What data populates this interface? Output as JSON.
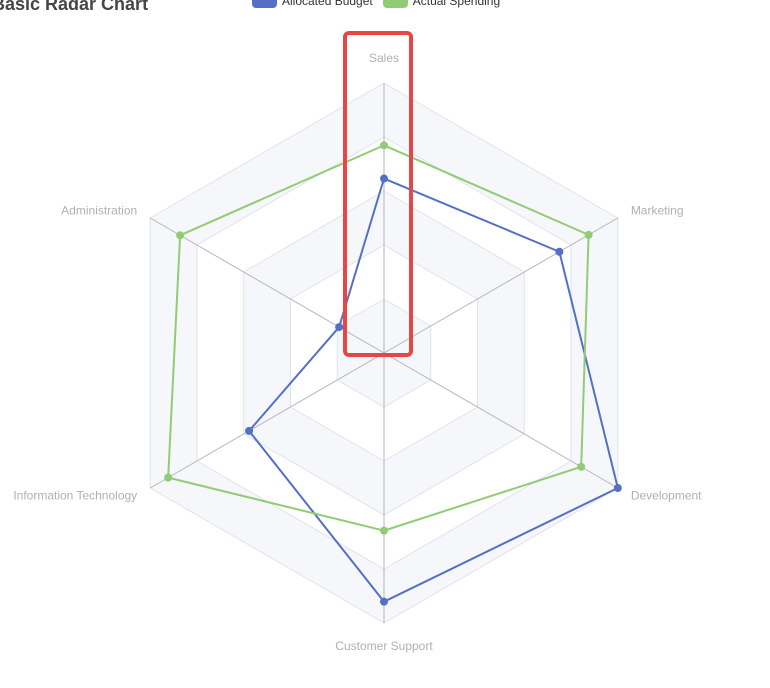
{
  "colors": {
    "allocated": "#5470c6",
    "actual": "#91cc75",
    "highlight": "#e84545"
  },
  "legend": {
    "allocated_label": "Allocated Budget",
    "actual_label": "Actual Spending"
  },
  "chart_data": {
    "type": "radar",
    "title": "Basic Radar Chart",
    "indicators": [
      {
        "name": "Sales",
        "max": 6500
      },
      {
        "name": "Marketing",
        "max": 16000
      },
      {
        "name": "Development",
        "max": 30000
      },
      {
        "name": "Customer Support",
        "max": 38000
      },
      {
        "name": "Information Technology",
        "max": 52000
      },
      {
        "name": "Administration",
        "max": 25000
      }
    ],
    "series": [
      {
        "name": "Allocated Budget",
        "values": [
          4200,
          12000,
          30000,
          35000,
          30000,
          4800
        ]
      },
      {
        "name": "Actual Spending",
        "values": [
          5000,
          14000,
          25300,
          25000,
          48000,
          21800
        ]
      }
    ],
    "split_number": 5,
    "highlighted_indicator": "Sales"
  }
}
